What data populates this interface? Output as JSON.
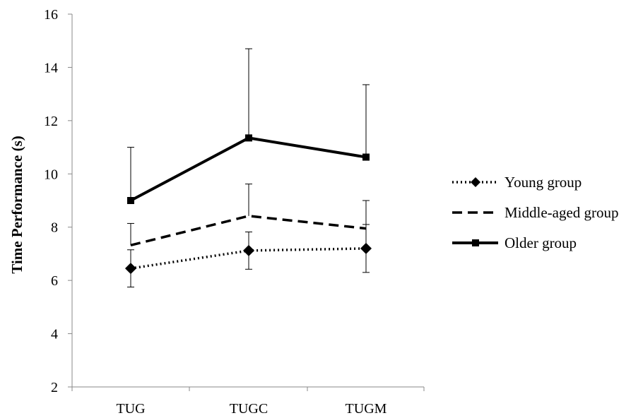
{
  "chart_data": {
    "type": "line",
    "title": "",
    "xlabel": "",
    "ylabel": "Time Performance (s)",
    "categories": [
      "TUG",
      "TUGC",
      "TUGM"
    ],
    "ylim": [
      2,
      16
    ],
    "yticks": [
      2,
      4,
      6,
      8,
      10,
      12,
      14,
      16
    ],
    "grid": false,
    "legend_position": "right",
    "series": [
      {
        "name": "Young group",
        "values": [
          6.45,
          7.12,
          7.2
        ],
        "error": [
          0.7,
          0.7,
          0.9
        ],
        "line_style": "dotted",
        "marker": "diamond",
        "color": "#000000"
      },
      {
        "name": "Middle-aged group",
        "values": [
          7.32,
          8.42,
          7.95
        ],
        "error": [
          0.82,
          1.2,
          1.05
        ],
        "line_style": "dashed",
        "marker": "none",
        "color": "#000000"
      },
      {
        "name": "Older group",
        "values": [
          9.0,
          11.35,
          10.63
        ],
        "error": [
          2.0,
          3.35,
          2.72
        ],
        "line_style": "solid",
        "marker": "square",
        "color": "#000000"
      }
    ]
  }
}
